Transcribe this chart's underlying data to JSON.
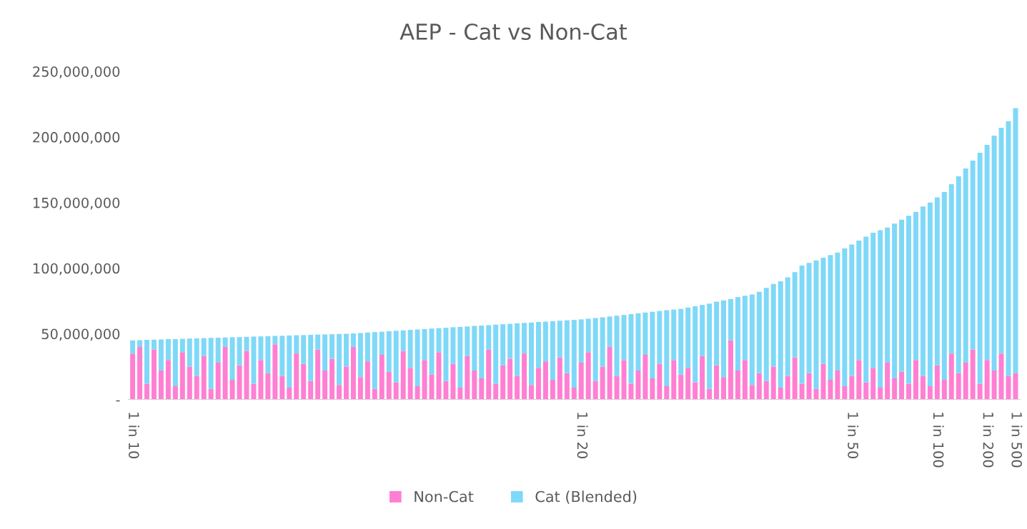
{
  "chart_data": {
    "type": "bar",
    "title": "AEP - Cat vs Non-Cat",
    "stacked": true,
    "legend": "bottom",
    "grid": false,
    "categories": [
      "1 in 10",
      null,
      null,
      null,
      null,
      null,
      null,
      null,
      null,
      null,
      null,
      null,
      null,
      null,
      null,
      null,
      null,
      null,
      null,
      null,
      null,
      null,
      null,
      null,
      null,
      null,
      null,
      null,
      null,
      null,
      null,
      null,
      null,
      null,
      null,
      null,
      null,
      null,
      null,
      null,
      null,
      null,
      null,
      null,
      null,
      null,
      null,
      null,
      null,
      null,
      null,
      null,
      null,
      null,
      null,
      null,
      null,
      null,
      null,
      null,
      null,
      null,
      null,
      "1 in 20",
      null,
      null,
      null,
      null,
      null,
      null,
      null,
      null,
      null,
      null,
      null,
      null,
      null,
      null,
      null,
      null,
      null,
      null,
      null,
      null,
      null,
      null,
      null,
      null,
      null,
      null,
      null,
      null,
      null,
      null,
      null,
      null,
      null,
      null,
      null,
      null,
      null,
      "1 in 50",
      null,
      null,
      null,
      null,
      null,
      null,
      null,
      null,
      null,
      null,
      null,
      "1 in 100",
      null,
      null,
      null,
      null,
      null,
      null,
      "1 in 200",
      null,
      null,
      null,
      "1 in 500"
    ],
    "ylim": [
      0,
      250000000
    ],
    "yticks": [
      {
        "value": 0,
        "label": "-"
      },
      {
        "value": 50000000,
        "label": "50,000,000"
      },
      {
        "value": 100000000,
        "label": "100,000,000"
      },
      {
        "value": 150000000,
        "label": "150,000,000"
      },
      {
        "value": 200000000,
        "label": "200,000,000"
      },
      {
        "value": 250000000,
        "label": "250,000,000"
      }
    ],
    "series": [
      {
        "name": "Non-Cat",
        "color": "#ff7fd2",
        "values": [
          35000000.0,
          40000000.0,
          12000000.0,
          38000000.0,
          22000000.0,
          30000000.0,
          10000000.0,
          36000000.0,
          25000000.0,
          18000000.0,
          33000000.0,
          8000000.0,
          28000000.0,
          40000000.0,
          15000000.0,
          26000000.0,
          37000000.0,
          12000000.0,
          30000000.0,
          20000000.0,
          42000000.0,
          18000000.0,
          9000000.0,
          35000000.0,
          27000000.0,
          14000000.0,
          38000000.0,
          22000000.0,
          31000000.0,
          11000000.0,
          25000000.0,
          40000000.0,
          17000000.0,
          29000000.0,
          8000000.0,
          34000000.0,
          21000000.0,
          13000000.0,
          37000000.0,
          24000000.0,
          10000000.0,
          30000000.0,
          19000000.0,
          36000000.0,
          14000000.0,
          27000000.0,
          9000000.0,
          33000000.0,
          22000000.0,
          16000000.0,
          38000000.0,
          12000000.0,
          26000000.0,
          31000000.0,
          18000000.0,
          35000000.0,
          11000000.0,
          24000000.0,
          29000000.0,
          15000000.0,
          32000000.0,
          20000000.0,
          9000000.0,
          28000000.0,
          36000000.0,
          14000000.0,
          25000000.0,
          40000000.0,
          18000000.0,
          30000000.0,
          12000000.0,
          22000000.0,
          34000000.0,
          16000000.0,
          27000000.0,
          10000000.0,
          30000000.0,
          19000000.0,
          24000000.0,
          13000000.0,
          33000000.0,
          8000000.0,
          26000000.0,
          17000000.0,
          45000000.0,
          22000000.0,
          30000000.0,
          11000000.0,
          20000000.0,
          14000000.0,
          25000000.0,
          9000000.0,
          18000000.0,
          32000000.0,
          12000000.0,
          20000000.0,
          8000000.0,
          27000000.0,
          15000000.0,
          22000000.0,
          10000000.0,
          18000000.0,
          30000000.0,
          13000000.0,
          24000000.0,
          9000000.0,
          28000000.0,
          16000000.0,
          21000000.0,
          12000000.0,
          30000000.0,
          18000000.0,
          10000000.0,
          26000000.0,
          15000000.0,
          35000000.0,
          20000000.0,
          28000000.0,
          38000000.0,
          12000000.0,
          30000000.0,
          22000000.0,
          35000000.0,
          18000000.0,
          20000000.0
        ]
      },
      {
        "name": "Cat (Blended)",
        "color": "#7fd8f8",
        "values": [
          10000000.0,
          5200000.0,
          33400000.0,
          7500000.0,
          23700000.0,
          15900000.0,
          36000000.0,
          10200000.0,
          21400000.0,
          28500000.0,
          13700000.0,
          38900000.0,
          19000000.0,
          7200000.0,
          32400000.0,
          21500000.0,
          10700000.0,
          35900000.0,
          18000000.0,
          28200000.0,
          6400000.0,
          30500000.0,
          39700000.0,
          13900000.0,
          22000000.0,
          35200000.0,
          11400000.0,
          27500000.0,
          18700000.0,
          38900000.0,
          25000000.0,
          10300000.0,
          33600000.0,
          22000000.0,
          43300000.0,
          17600000.0,
          31000000.0,
          39300000.0,
          15600000.0,
          29000000.0,
          43300000.0,
          23600000.0,
          35000000.0,
          18300000.0,
          40600000.0,
          28000000.0,
          46300000.0,
          22600000.0,
          34000000.0,
          40300000.0,
          18600000.0,
          45000000.0,
          31300000.0,
          26600000.0,
          40000000.0,
          23300000.0,
          47600000.0,
          35000000.0,
          30300000.0,
          44600000.0,
          28000000.0,
          40300000.0,
          51600000.0,
          33000000.0,
          25500000.0,
          48000000.0,
          37600000.0,
          23200000.0,
          45800000.0,
          34400000.0,
          53000000.0,
          43600000.0,
          32200000.0,
          50800000.0,
          40400000.0,
          58000000.0,
          38500000.0,
          50000000.0,
          46000000.0,
          58000000.0,
          39000000.0,
          65000000.0,
          48500000.0,
          58500000.0,
          31500000.0,
          56000000.0,
          49000000.0,
          69000000.0,
          62000000.0,
          71000000.0,
          63000000.0,
          81000000.0,
          75000000.0,
          65000000.0,
          90000000.0,
          84000000.0,
          98000000.0,
          81000000.0,
          95000000.0,
          90000000.0,
          105000000.0,
          100000000.0,
          91000000.0,
          111000000.0,
          103000000.0,
          120000000.0,
          103000000.0,
          118000000.0,
          116000000.0,
          128000000.0,
          113000000.0,
          129000000.0,
          140000000.0,
          128000000.0,
          143000000.0,
          129000000.0,
          150000000.0,
          148000000.0,
          144000000.0,
          176000000.0,
          164000000.0,
          179000000.0,
          172000000.0,
          194000000.0,
          202000000.0
        ]
      }
    ]
  }
}
